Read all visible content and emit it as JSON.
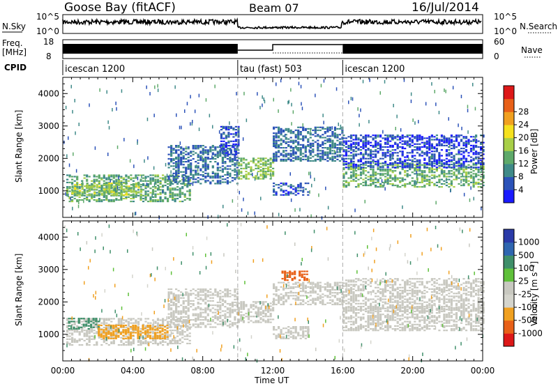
{
  "header": {
    "station": "Goose Bay (fitACF)",
    "beam": "Beam 07",
    "date": "16/Jul/2014"
  },
  "noise_panel": {
    "left_label": "N.Sky",
    "right_label": "N.Search",
    "left_ticks": [
      "10^5",
      "10^0"
    ],
    "right_ticks": [
      "10^5",
      "10^0"
    ]
  },
  "freq_panel": {
    "left_label_line1": "Freq.",
    "left_label_line2": "[MHz]",
    "left_ticks": [
      "18",
      "8"
    ],
    "right_label": "Nave",
    "right_ticks": [
      "60",
      "0"
    ]
  },
  "cpid_panel": {
    "label": "CPID",
    "segments": [
      {
        "start_hour": 0,
        "end_hour": 10,
        "label": "icescan 1200"
      },
      {
        "start_hour": 10,
        "end_hour": 16,
        "label": "tau (fast) 503"
      },
      {
        "start_hour": 16,
        "end_hour": 24,
        "label": "icescan 1200"
      }
    ]
  },
  "chart_data": [
    {
      "type": "heatmap",
      "title": "",
      "ylabel": "Slant Range [km]",
      "ylim": [
        180,
        4500
      ],
      "yticks": [
        1000,
        2000,
        3000,
        4000
      ],
      "xlim": [
        0,
        24
      ],
      "colorbar": {
        "label": "Power [dB]",
        "range": [
          0,
          30
        ],
        "ticks": [
          "4",
          "8",
          "12",
          "16",
          "20",
          "24",
          "28"
        ],
        "colors": [
          "#1a1aff",
          "#2b52b8",
          "#3f8a88",
          "#5ea96a",
          "#a8cf48",
          "#f5e11e",
          "#f0a020",
          "#e86018",
          "#dd1818"
        ]
      },
      "regions": [
        {
          "x0": 0.2,
          "x1": 7.2,
          "y0": 650,
          "y1": 1500,
          "level": 13
        },
        {
          "x0": 0.5,
          "x1": 4.5,
          "y0": 850,
          "y1": 1250,
          "level": 17
        },
        {
          "x0": 6.0,
          "x1": 10.0,
          "y0": 1200,
          "y1": 2400,
          "level": 8
        },
        {
          "x0": 9.0,
          "x1": 10.0,
          "y0": 2100,
          "y1": 3000,
          "level": 6
        },
        {
          "x0": 10.0,
          "x1": 12.0,
          "y0": 1350,
          "y1": 2000,
          "level": 16
        },
        {
          "x0": 12.0,
          "x1": 16.0,
          "y0": 1900,
          "y1": 2950,
          "level": 8
        },
        {
          "x0": 12.0,
          "x1": 14.0,
          "y0": 850,
          "y1": 1250,
          "level": 6
        },
        {
          "x0": 16.0,
          "x1": 24.0,
          "y0": 1100,
          "y1": 1850,
          "level": 14
        },
        {
          "x0": 16.0,
          "x1": 24.0,
          "y0": 1700,
          "y1": 2700,
          "level": 5
        }
      ]
    },
    {
      "type": "heatmap",
      "title": "",
      "xlabel": "Time UT",
      "ylabel": "Slant Range [km]",
      "ylim": [
        180,
        4500
      ],
      "yticks": [
        1000,
        2000,
        3000,
        4000
      ],
      "xlim": [
        0,
        24
      ],
      "xticks": [
        "00:00",
        "04:00",
        "08:00",
        "12:00",
        "16:00",
        "20:00",
        "00:00"
      ],
      "colorbar": {
        "label": "Velocity [m s⁻¹]",
        "ticks": [
          "1000",
          "500",
          "100",
          "25",
          "-25",
          "-100",
          "-500",
          "-1000"
        ],
        "colors": [
          "#2a3aa8",
          "#2f66b0",
          "#3f8f6a",
          "#5fc03a",
          "#c8c8c0",
          "#d4d4cc",
          "#f0a020",
          "#e86018",
          "#dd1818"
        ]
      },
      "regions": [
        {
          "x0": 0.2,
          "x1": 7.2,
          "y0": 650,
          "y1": 1500,
          "value": 0
        },
        {
          "x0": 0.3,
          "x1": 2.0,
          "y0": 1150,
          "y1": 1500,
          "value": 150
        },
        {
          "x0": 2.0,
          "x1": 6.0,
          "y0": 850,
          "y1": 1300,
          "value": -200
        },
        {
          "x0": 6.0,
          "x1": 10.0,
          "y0": 1200,
          "y1": 2400,
          "value": 0
        },
        {
          "x0": 10.0,
          "x1": 12.0,
          "y0": 1350,
          "y1": 2000,
          "value": 0
        },
        {
          "x0": 12.0,
          "x1": 16.0,
          "y0": 1900,
          "y1": 2600,
          "value": 0
        },
        {
          "x0": 12.5,
          "x1": 14.0,
          "y0": 2650,
          "y1": 2950,
          "value": -600
        },
        {
          "x0": 12.0,
          "x1": 14.0,
          "y0": 850,
          "y1": 1250,
          "value": 0
        },
        {
          "x0": 16.0,
          "x1": 24.0,
          "y0": 1100,
          "y1": 1850,
          "value": 0
        },
        {
          "x0": 16.0,
          "x1": 24.0,
          "y0": 1700,
          "y1": 2700,
          "value": 0
        }
      ]
    }
  ]
}
